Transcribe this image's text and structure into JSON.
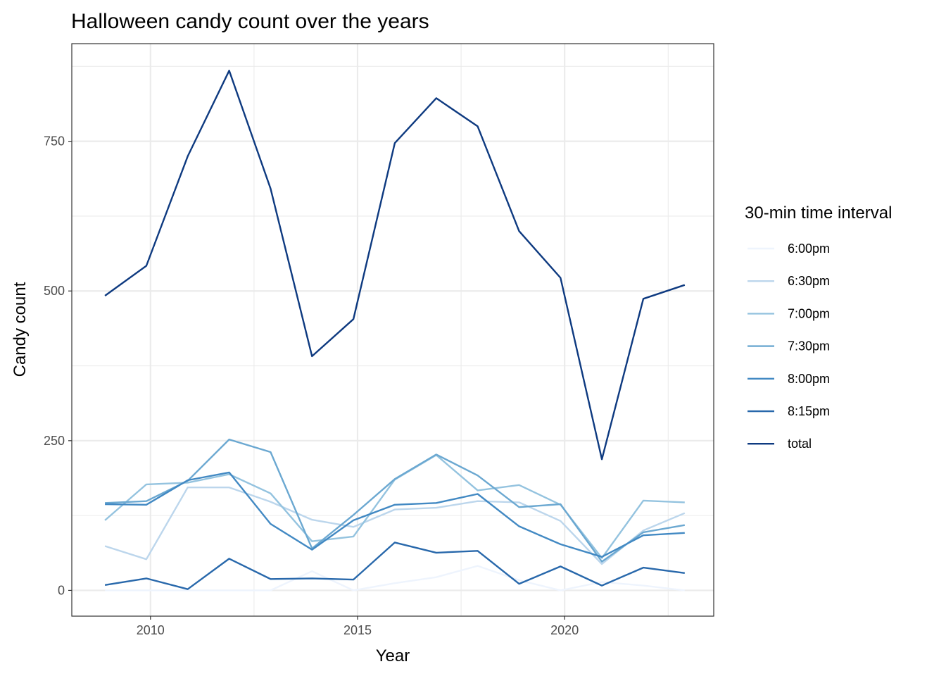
{
  "chart_data": {
    "type": "line",
    "title": "Halloween candy count over the years",
    "xlabel": "Year",
    "ylabel": "Candy count",
    "xlim": [
      2008.1,
      2023.6
    ],
    "ylim": [
      -43,
      913
    ],
    "x_major_ticks": [
      2010,
      2015,
      2020
    ],
    "x_minor_ticks": [
      2007.5,
      2012.5,
      2017.5,
      2022.5
    ],
    "y_major_ticks": [
      0,
      250,
      500,
      750
    ],
    "y_minor_ticks": [
      125,
      375,
      625,
      875
    ],
    "x_tick_labels": [
      "2010",
      "2015",
      "2020"
    ],
    "y_tick_labels": [
      "0",
      "250",
      "500",
      "750"
    ],
    "grid": true,
    "legend": {
      "title": "30-min time interval",
      "placement": "right"
    },
    "x": [
      2008.9,
      2009.9,
      2010.9,
      2011.9,
      2012.9,
      2013.9,
      2014.9,
      2015.9,
      2016.9,
      2017.9,
      2018.9,
      2019.9,
      2020.9,
      2021.9,
      2022.9
    ],
    "series": [
      {
        "name": "6:00pm",
        "color": "#eef4fd",
        "values": [
          0,
          0,
          0,
          0,
          0,
          32,
          0,
          12,
          22,
          41,
          17,
          0,
          14,
          8,
          0
        ]
      },
      {
        "name": "6:30pm",
        "color": "#bcd6ec",
        "values": [
          74,
          52,
          172,
          172,
          148,
          118,
          106,
          135,
          138,
          149,
          147,
          116,
          44,
          100,
          129
        ]
      },
      {
        "name": "7:00pm",
        "color": "#94c3df",
        "values": [
          117,
          177,
          180,
          194,
          162,
          82,
          90,
          185,
          226,
          167,
          176,
          143,
          54,
          150,
          147
        ]
      },
      {
        "name": "7:30pm",
        "color": "#6ba8d1",
        "values": [
          146,
          149,
          183,
          252,
          231,
          70,
          126,
          186,
          227,
          192,
          139,
          144,
          48,
          97,
          109
        ]
      },
      {
        "name": "8:00pm",
        "color": "#4289c3",
        "values": [
          144,
          143,
          184,
          197,
          111,
          68,
          117,
          143,
          146,
          161,
          107,
          77,
          56,
          92,
          96
        ]
      },
      {
        "name": "8:15pm",
        "color": "#2868ab",
        "values": [
          9,
          20,
          2,
          53,
          19,
          20,
          18,
          80,
          63,
          66,
          11,
          40,
          8,
          38,
          29
        ]
      },
      {
        "name": "total",
        "color": "#0e3a80",
        "values": [
          492,
          542,
          725,
          868,
          671,
          391,
          453,
          747,
          822,
          775,
          600,
          522,
          219,
          487,
          510
        ]
      }
    ]
  }
}
